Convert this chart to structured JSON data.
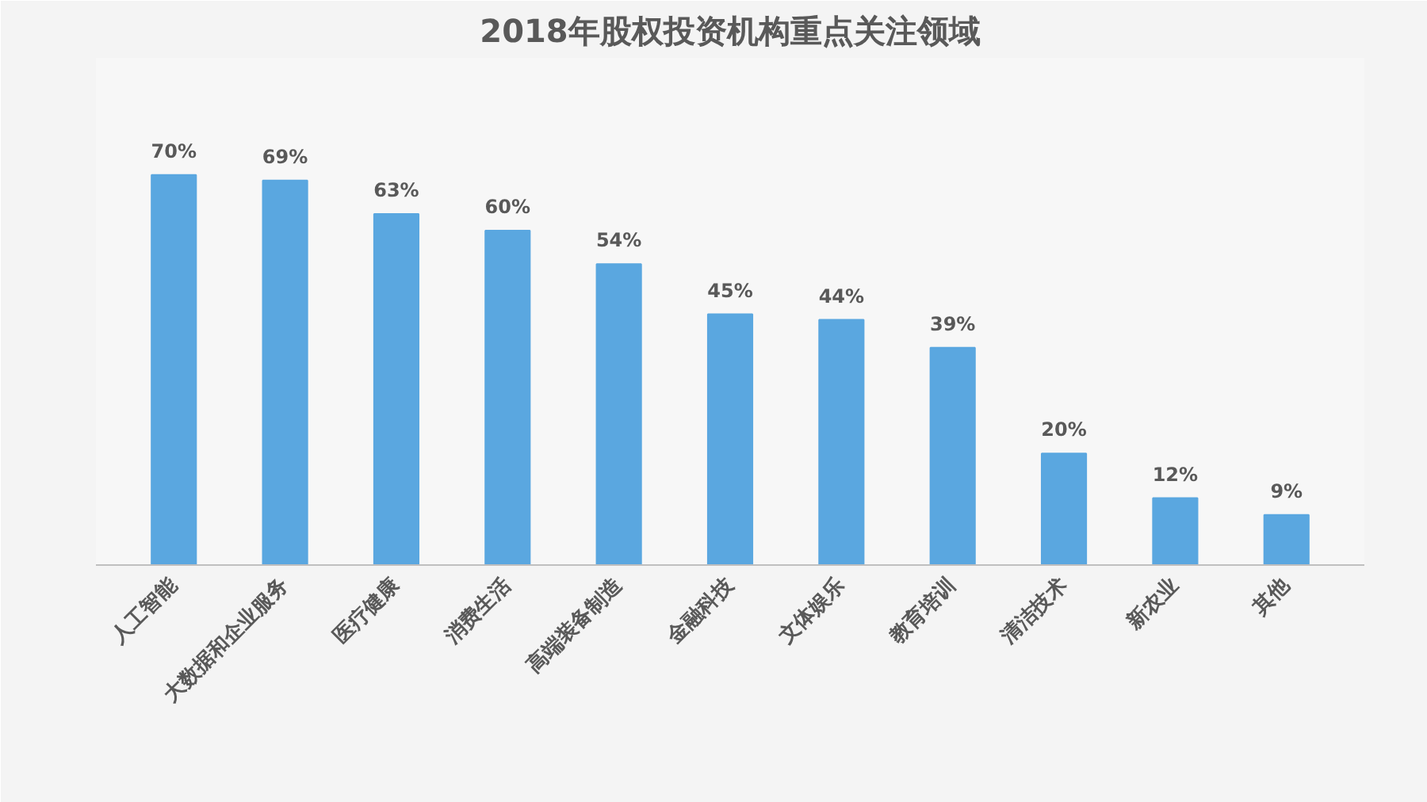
{
  "chart_data": {
    "type": "bar",
    "title": "2018年股权投资机构重点关注领域",
    "categories": [
      "人工智能",
      "大数据和企业服务",
      "医疗健康",
      "消费生活",
      "高端装备制造",
      "金融科技",
      "文体娱乐",
      "教育培训",
      "清洁技术",
      "新农业",
      "其他"
    ],
    "values": [
      70,
      69,
      63,
      60,
      54,
      45,
      44,
      39,
      20,
      12,
      9
    ],
    "color": "#5aa7e0",
    "value_labels": [
      "70%",
      "69%",
      "63%",
      "60%",
      "54%",
      "45%",
      "44%",
      "39%",
      "20%",
      "12%",
      "9%"
    ],
    "grid": false
  }
}
